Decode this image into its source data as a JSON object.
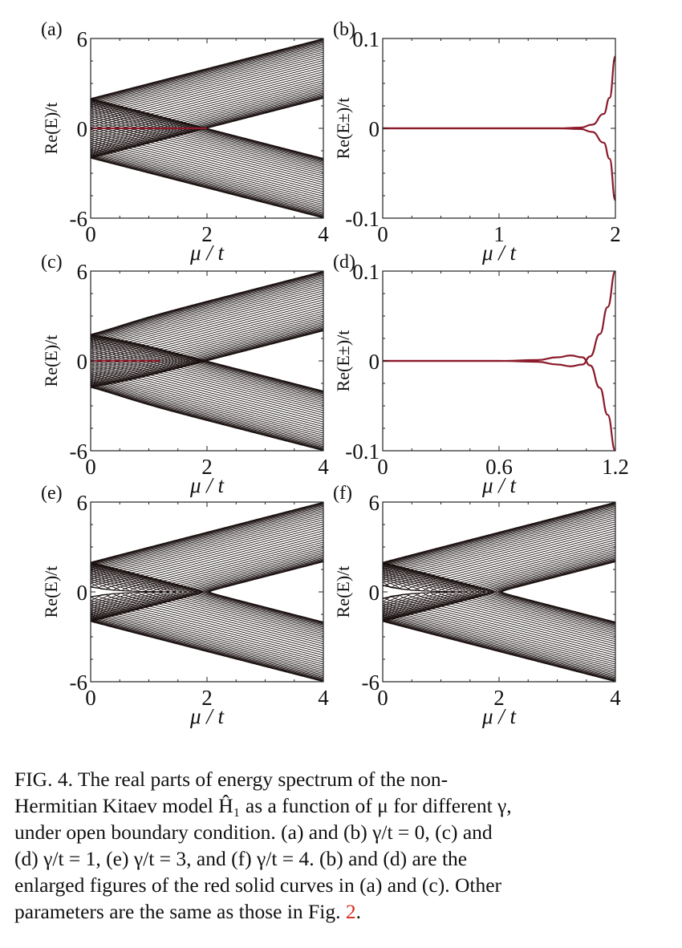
{
  "chart_data": [
    {
      "type": "line",
      "panel_label": "(a)",
      "ylabel": "Re(E)/t",
      "xlabel": "μ / t",
      "xlim": [
        0,
        4
      ],
      "ylim": [
        -6,
        6
      ],
      "xticks": [
        "0",
        "2",
        "4"
      ],
      "yticks": [
        "6",
        "0",
        "-6"
      ],
      "gamma_over_t": 0,
      "band_count": 40,
      "bands": "±| |μ| − 2t cos(kπ/41) |, k = 1…40 (black)",
      "highlight": {
        "color": "#8b1a2a",
        "mu": [
          0,
          2
        ],
        "value": 0
      }
    },
    {
      "type": "line",
      "panel_label": "(b)",
      "ylabel": "Re(E±)/t",
      "xlabel": "μ / t",
      "xlim": [
        0,
        2
      ],
      "ylim": [
        -0.1,
        0.1
      ],
      "xticks": [
        "0",
        "1",
        "2"
      ],
      "yticks": [
        "0.1",
        "0",
        "-0.1"
      ],
      "series": [
        {
          "color": "#8b1a2a",
          "x": [
            0,
            1.0,
            1.5,
            1.7,
            1.8,
            1.9,
            1.95,
            2.0
          ],
          "y": [
            0,
            0,
            0,
            0.0008,
            0.004,
            0.016,
            0.034,
            0.08
          ]
        },
        {
          "color": "#8b1a2a",
          "x": [
            0,
            1.0,
            1.5,
            1.7,
            1.8,
            1.9,
            1.95,
            2.0
          ],
          "y": [
            0,
            0,
            0,
            -0.0008,
            -0.004,
            -0.016,
            -0.034,
            -0.08
          ]
        }
      ]
    },
    {
      "type": "line",
      "panel_label": "(c)",
      "ylabel": "Re(E)/t",
      "xlabel": "μ / t",
      "xlim": [
        0,
        4
      ],
      "ylim": [
        -6,
        6
      ],
      "xticks": [
        "0",
        "2",
        "4"
      ],
      "yticks": [
        "6",
        "0",
        "-6"
      ],
      "gamma_over_t": 1,
      "band_count": 40,
      "highlight": {
        "color": "#8b1a2a",
        "mu": [
          0,
          1.2
        ],
        "value": 0
      }
    },
    {
      "type": "line",
      "panel_label": "(d)",
      "ylabel": "Re(E±)/t",
      "xlabel": "μ / t",
      "xlim": [
        0,
        1.2
      ],
      "ylim": [
        -0.1,
        0.1
      ],
      "xticks": [
        "0",
        "0.6",
        "1.2"
      ],
      "yticks": [
        "0.1",
        "0",
        "-0.1"
      ],
      "series": [
        {
          "color": "#8b1a2a",
          "x": [
            0,
            0.6,
            0.8,
            0.9,
            0.97,
            1.03,
            1.07,
            1.12,
            1.16,
            1.2
          ],
          "y": [
            0,
            0,
            0.001,
            0.004,
            0.006,
            0.004,
            -0.005,
            -0.03,
            -0.06,
            -0.1
          ]
        },
        {
          "color": "#8b1a2a",
          "x": [
            0,
            0.6,
            0.8,
            0.9,
            0.97,
            1.03,
            1.07,
            1.12,
            1.16,
            1.2
          ],
          "y": [
            0,
            0,
            -0.001,
            -0.004,
            -0.006,
            -0.004,
            0.005,
            0.03,
            0.06,
            0.1
          ]
        }
      ]
    },
    {
      "type": "line",
      "panel_label": "(e)",
      "ylabel": "Re(E)/t",
      "xlabel": "μ / t",
      "xlim": [
        0,
        4
      ],
      "ylim": [
        -6,
        6
      ],
      "xticks": [
        "0",
        "2",
        "4"
      ],
      "yticks": [
        "6",
        "0",
        "-6"
      ],
      "gamma_over_t": 3,
      "band_count": 40
    },
    {
      "type": "line",
      "panel_label": "(f)",
      "ylabel": "Re(E)/t",
      "xlabel": "μ / t",
      "xlim": [
        0,
        4
      ],
      "ylim": [
        -6,
        6
      ],
      "xticks": [
        "0",
        "2",
        "4"
      ],
      "yticks": [
        "6",
        "0",
        "-6"
      ],
      "gamma_over_t": 4,
      "band_count": 40
    }
  ],
  "colors": {
    "bands": "#1a1010",
    "highlight": "#8b1a2a",
    "figref": "#d62b1f"
  },
  "caption": {
    "lines": [
      "FIG. 4.   The real parts of energy spectrum of the non-",
      "Hermitian Kitaev model Ĥ₁ as a function of μ for different γ,",
      "under open boundary condition. (a) and (b) γ/t = 0, (c) and",
      "(d) γ/t = 1, (e) γ/t = 3, and (f) γ/t = 4. (b) and (d) are the",
      "enlarged figures of the red solid curves in (a) and (c). Other"
    ],
    "last_line_text": "parameters are the same as those in Fig. ",
    "fig_ref": "2",
    "last_line_end": "."
  }
}
